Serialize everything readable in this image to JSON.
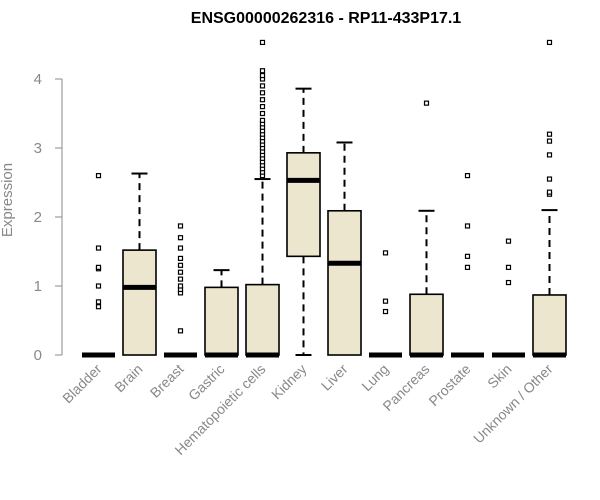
{
  "chart_data": {
    "type": "box",
    "title": "ENSG00000262316 - RP11-433P17.1",
    "xlabel": "",
    "ylabel": "Expression",
    "ylim": [
      0,
      4.5
    ],
    "yticks": [
      0,
      1,
      2,
      3,
      4
    ],
    "colors": {
      "box_fill": "#ede6cf",
      "stroke": "#000000",
      "axis": "#888888"
    },
    "categories": [
      "Bladder",
      "Brain",
      "Breast",
      "Gastric",
      "Hematopoietic cells",
      "Kidney",
      "Liver",
      "Lung",
      "Pancreas",
      "Prostate",
      "Skin",
      "Unknown / Other"
    ],
    "boxes": [
      {
        "category": "Bladder",
        "q1": 0,
        "median": 0,
        "q3": 0,
        "whisker_low": 0,
        "whisker_high": 0,
        "outliers": [
          0.7,
          0.77,
          1.0,
          1.25,
          1.27,
          1.55,
          2.6
        ]
      },
      {
        "category": "Brain",
        "q1": 0,
        "median": 0.98,
        "q3": 1.52,
        "whisker_low": 0,
        "whisker_high": 2.63,
        "outliers": []
      },
      {
        "category": "Breast",
        "q1": 0,
        "median": 0,
        "q3": 0,
        "whisker_low": 0,
        "whisker_high": 0,
        "outliers": [
          0.35,
          0.9,
          0.95,
          1.0,
          1.1,
          1.2,
          1.3,
          1.4,
          1.55,
          1.7,
          1.87
        ]
      },
      {
        "category": "Gastric",
        "q1": 0,
        "median": 0,
        "q3": 0.98,
        "whisker_low": 0,
        "whisker_high": 1.23,
        "outliers": []
      },
      {
        "category": "Hematopoietic cells",
        "q1": 0,
        "median": 0,
        "q3": 1.02,
        "whisker_low": 0,
        "whisker_high": 2.55,
        "outliers": [
          2.6,
          2.65,
          2.7,
          2.75,
          2.8,
          2.85,
          2.9,
          2.95,
          3.0,
          3.05,
          3.1,
          3.15,
          3.2,
          3.25,
          3.3,
          3.35,
          3.4,
          3.5,
          3.6,
          3.7,
          3.8,
          3.9,
          4.0,
          4.05,
          4.12,
          4.53
        ]
      },
      {
        "category": "Kidney",
        "q1": 1.43,
        "median": 2.53,
        "q3": 2.93,
        "whisker_low": 0,
        "whisker_high": 3.86,
        "outliers": []
      },
      {
        "category": "Liver",
        "q1": 0,
        "median": 1.33,
        "q3": 2.09,
        "whisker_low": 0,
        "whisker_high": 3.08,
        "outliers": []
      },
      {
        "category": "Lung",
        "q1": 0,
        "median": 0,
        "q3": 0,
        "whisker_low": 0,
        "whisker_high": 0,
        "outliers": [
          0.63,
          0.78,
          1.48
        ]
      },
      {
        "category": "Pancreas",
        "q1": 0,
        "median": 0,
        "q3": 0.88,
        "whisker_low": 0,
        "whisker_high": 2.09,
        "outliers": [
          3.65
        ]
      },
      {
        "category": "Prostate",
        "q1": 0,
        "median": 0,
        "q3": 0,
        "whisker_low": 0,
        "whisker_high": 0,
        "outliers": [
          1.27,
          1.43,
          1.87,
          2.6
        ]
      },
      {
        "category": "Skin",
        "q1": 0,
        "median": 0,
        "q3": 0,
        "whisker_low": 0,
        "whisker_high": 0,
        "outliers": [
          1.05,
          1.27,
          1.65
        ]
      },
      {
        "category": "Unknown / Other",
        "q1": 0,
        "median": 0,
        "q3": 0.87,
        "whisker_low": 0,
        "whisker_high": 2.1,
        "outliers": [
          2.33,
          2.36,
          2.55,
          2.9,
          3.1,
          3.2,
          4.53
        ]
      }
    ]
  }
}
